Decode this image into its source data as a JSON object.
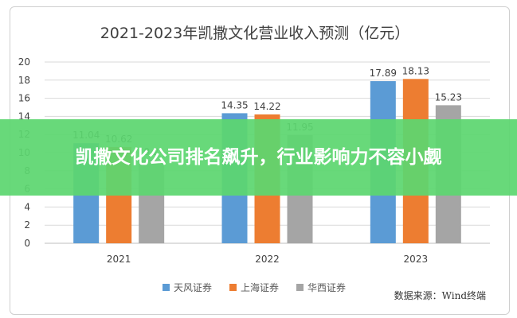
{
  "chart_data": {
    "type": "bar",
    "title": "2021-2023年凯撒文化营业收入预测（亿元）",
    "categories": [
      "2021",
      "2022",
      "2023"
    ],
    "series": [
      {
        "name": "天风证券",
        "values": [
          11.04,
          14.35,
          17.89
        ],
        "color": "#5B9BD5"
      },
      {
        "name": "上海证券",
        "values": [
          10.62,
          14.22,
          18.13
        ],
        "color": "#ED7D31"
      },
      {
        "name": "华西证券",
        "values": [
          9.2,
          11.95,
          15.23
        ],
        "color": "#A5A5A5"
      }
    ],
    "ylim": [
      0,
      20
    ],
    "yticks": [
      0,
      2,
      4,
      6,
      8,
      10,
      12,
      14,
      16,
      18,
      20
    ],
    "grid": true,
    "legend_position": "bottom",
    "source": "数据来源：Wind终端"
  },
  "banner": {
    "title": "凯撒文化公司排名飙升，行业影响力不容小觑"
  }
}
